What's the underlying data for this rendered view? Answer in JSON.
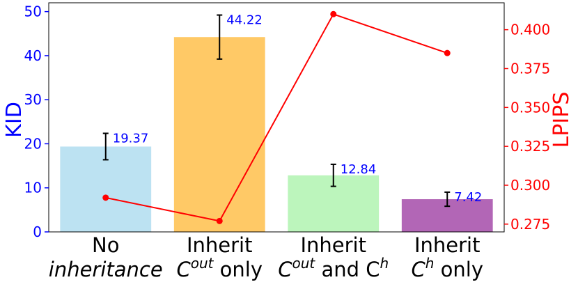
{
  "chart_data": {
    "type": "bar",
    "categories": [
      {
        "line1": "No",
        "line2_pre": "inheritance",
        "sup1": "",
        "line2_mid": "",
        "sup2": "",
        "line2_post": ""
      },
      {
        "line1": "Inherit",
        "line2_pre": "C",
        "sup1": "out",
        "line2_mid": " only",
        "sup2": "",
        "line2_post": ""
      },
      {
        "line1": "Inherit",
        "line2_pre": "C",
        "sup1": "out",
        "line2_mid": " and C",
        "sup2": "h",
        "line2_post": ""
      },
      {
        "line1": "Inherit",
        "line2_pre": "C",
        "sup1": "h",
        "line2_mid": " only",
        "sup2": "",
        "line2_post": ""
      }
    ],
    "series": [
      {
        "name": "KID",
        "axis": "left",
        "kind": "bar",
        "values": [
          19.37,
          44.22,
          12.84,
          7.42
        ],
        "value_labels": [
          "19.37",
          "44.22",
          "12.84",
          "7.42"
        ],
        "errors": [
          3.0,
          5.0,
          2.5,
          1.6
        ],
        "colors": [
          "#bce2f2",
          "#ffc966",
          "#bcf5bc",
          "#b266b6"
        ]
      },
      {
        "name": "LPIPS",
        "axis": "right",
        "kind": "line",
        "values": [
          0.292,
          0.277,
          0.41,
          0.385
        ],
        "color": "#ff0000"
      }
    ],
    "ylabel_left": "KID",
    "ylabel_right": "LPIPS",
    "ylim_left": [
      0,
      52
    ],
    "ylim_right": [
      0.27,
      0.4173
    ],
    "yticks_left": [
      "0",
      "10",
      "20",
      "30",
      "40",
      "50"
    ],
    "yticks_right": [
      "0.275",
      "0.300",
      "0.325",
      "0.350",
      "0.375",
      "0.400"
    ],
    "left_axis_color": "#0000ff",
    "right_axis_color": "#ff0000",
    "error_bar_color": "#000000"
  }
}
